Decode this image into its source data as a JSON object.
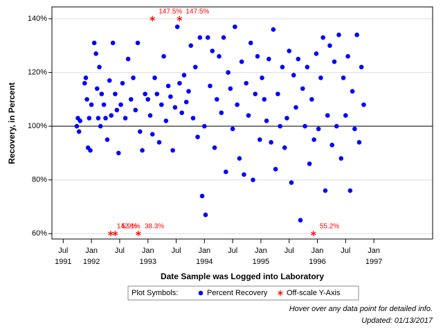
{
  "chart_data": {
    "type": "scatter",
    "x_label": "Date Sample was Logged into Laboratory",
    "y_label": "Recovery, in Percent",
    "xlim": [
      1991.3,
      1998.04
    ],
    "ylim": [
      58,
      144.4
    ],
    "xticks": [
      {
        "value": 1991.5,
        "label": "Jul\n1991"
      },
      {
        "value": 1992,
        "label": "Jan\n1992"
      },
      {
        "value": 1992.5,
        "label": "Jul"
      },
      {
        "value": 1993,
        "label": "Jan\n1993"
      },
      {
        "value": 1993.5,
        "label": "Jul"
      },
      {
        "value": 1994,
        "label": "Jan\n1994"
      },
      {
        "value": 1994.5,
        "label": "Jul"
      },
      {
        "value": 1995,
        "label": "Jan\n1995"
      },
      {
        "value": 1995.5,
        "label": "Jul"
      },
      {
        "value": 1996,
        "label": "Jan\n1996"
      },
      {
        "value": 1996.5,
        "label": "Jul"
      },
      {
        "value": 1997,
        "label": "Jan\n1997"
      }
    ],
    "yticks": [
      {
        "value": 60,
        "label": "60%"
      },
      {
        "value": 80,
        "label": "80%"
      },
      {
        "value": 100,
        "label": "100%"
      },
      {
        "value": 120,
        "label": "120%"
      },
      {
        "value": 140,
        "label": "140%"
      }
    ],
    "grid": true,
    "reference_line": 100,
    "legend_title": "Plot Symbols:",
    "notes": [
      "Hover over any data point for detailed info.",
      "Updated: 01/13/2017"
    ],
    "series": [
      {
        "name": "Percent Recovery",
        "color": "#0000ff",
        "marker": "dot",
        "x": [
          1991.74,
          1991.76,
          1991.78,
          1991.8,
          1991.88,
          1991.9,
          1991.92,
          1991.94,
          1991.96,
          1991.98,
          1992.0,
          1992.05,
          1992.08,
          1992.1,
          1992.12,
          1992.14,
          1992.16,
          1992.18,
          1992.22,
          1992.25,
          1992.28,
          1992.32,
          1992.35,
          1992.38,
          1992.42,
          1992.45,
          1992.48,
          1992.52,
          1992.55,
          1992.6,
          1992.65,
          1992.7,
          1992.74,
          1992.78,
          1992.82,
          1992.86,
          1992.9,
          1992.95,
          1993.0,
          1993.04,
          1993.08,
          1993.12,
          1993.16,
          1993.2,
          1993.24,
          1993.28,
          1993.32,
          1993.36,
          1993.4,
          1993.44,
          1993.48,
          1993.52,
          1993.56,
          1993.6,
          1993.64,
          1993.68,
          1993.72,
          1993.76,
          1993.8,
          1993.84,
          1993.88,
          1993.92,
          1993.96,
          1994.0,
          1994.02,
          1994.06,
          1994.1,
          1994.14,
          1994.18,
          1994.22,
          1994.26,
          1994.3,
          1994.34,
          1994.38,
          1994.42,
          1994.46,
          1994.5,
          1994.54,
          1994.58,
          1994.62,
          1994.66,
          1994.7,
          1994.74,
          1994.78,
          1994.82,
          1994.86,
          1994.9,
          1994.94,
          1994.98,
          1995.02,
          1995.06,
          1995.1,
          1995.14,
          1995.18,
          1995.22,
          1995.26,
          1995.3,
          1995.34,
          1995.38,
          1995.42,
          1995.46,
          1995.5,
          1995.54,
          1995.58,
          1995.62,
          1995.66,
          1995.7,
          1995.74,
          1995.78,
          1995.82,
          1995.86,
          1995.9,
          1995.94,
          1995.98,
          1996.02,
          1996.06,
          1996.1,
          1996.14,
          1996.18,
          1996.22,
          1996.26,
          1996.3,
          1996.34,
          1996.38,
          1996.42,
          1996.46,
          1996.5,
          1996.54,
          1996.58,
          1996.62,
          1996.66,
          1996.7,
          1996.74,
          1996.78,
          1996.82
        ],
        "values": [
          100,
          103,
          98,
          102,
          116,
          118,
          110,
          92,
          103,
          91,
          108,
          131,
          127,
          114,
          103,
          122,
          100,
          112,
          108,
          103,
          95,
          117,
          104,
          131,
          112,
          106,
          90,
          108,
          116,
          103,
          125,
          110,
          118,
          106,
          131,
          98,
          91,
          112,
          110,
          104,
          97,
          118,
          112,
          94,
          108,
          126,
          102,
          115,
          111,
          91,
          107,
          137,
          116,
          105,
          119,
          109,
          113,
          130,
          103,
          122,
          96,
          133,
          74,
          100,
          67,
          133,
          115,
          128,
          92,
          110,
          126,
          105,
          133,
          83,
          120,
          114,
          99,
          137,
          108,
          88,
          124,
          82,
          116,
          104,
          131,
          80,
          112,
          126,
          95,
          118,
          110,
          102,
          125,
          94,
          136,
          84,
          112,
          100,
          122,
          92,
          103,
          128,
          79,
          119,
          107,
          125,
          65,
          114,
          100,
          122,
          86,
          110,
          95,
          127,
          99,
          118,
          133,
          76,
          104,
          130,
          93,
          124,
          100,
          134,
          88,
          118,
          104,
          126,
          76,
          113,
          99,
          134,
          94,
          122,
          108
        ]
      },
      {
        "name": "Off-scale Y-Axis",
        "color": "#ff0000",
        "marker": "asterisk",
        "x": [
          1992.34,
          1993.08,
          1993.56,
          1992.42,
          1992.83,
          1995.93
        ],
        "values": [
          142.1,
          147.5,
          147.5,
          5.9,
          38.3,
          55.2
        ],
        "value_labels": [
          "142.1%",
          "147.5%",
          "147.5%",
          "5.9%",
          "38.3%",
          "55.2%"
        ]
      }
    ]
  }
}
